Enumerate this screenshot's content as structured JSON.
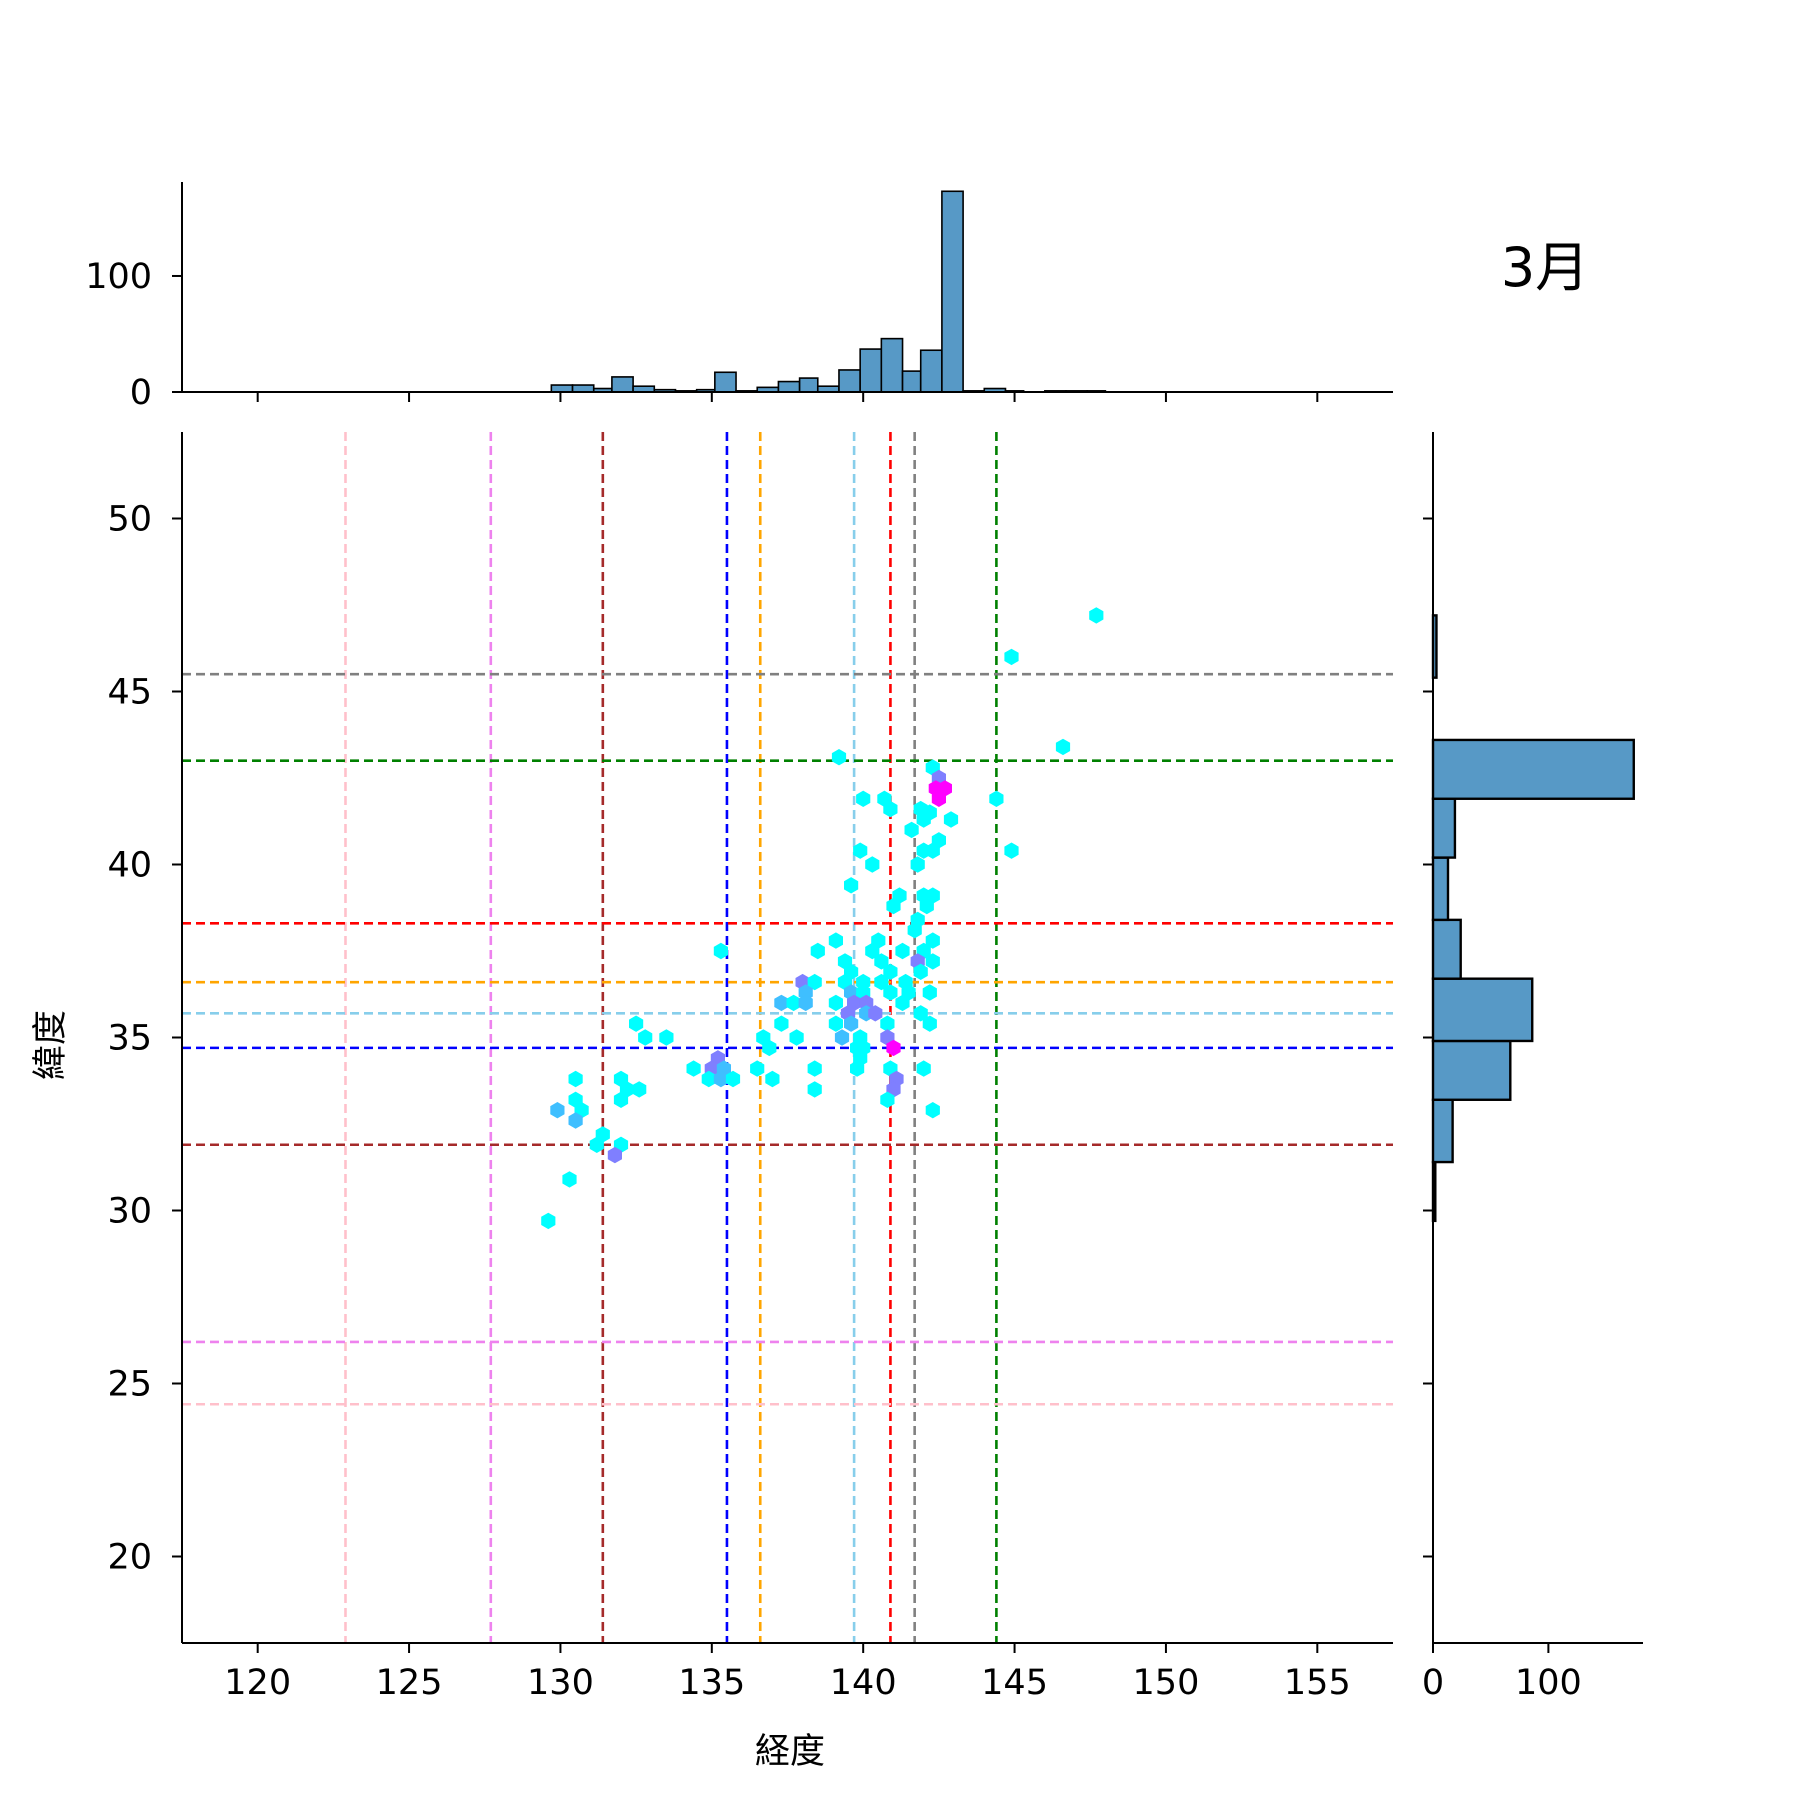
{
  "chart_data": {
    "type": "hexbin-joint",
    "title": "3月",
    "xlabel": "経度",
    "ylabel": "緯度",
    "xlim": [
      117.5,
      157.5
    ],
    "ylim": [
      17.5,
      52.5
    ],
    "xticks": [
      120,
      125,
      130,
      135,
      140,
      145,
      150,
      155
    ],
    "yticks": [
      20,
      25,
      30,
      35,
      40,
      45,
      50
    ],
    "marginal_x": {
      "yticks": [
        0,
        100
      ],
      "bins": [
        {
          "x0": 129.7,
          "x1": 130.4,
          "count": 6
        },
        {
          "x0": 130.4,
          "x1": 131.1,
          "count": 6
        },
        {
          "x0": 131.1,
          "x1": 131.7,
          "count": 3
        },
        {
          "x0": 131.7,
          "x1": 132.4,
          "count": 13
        },
        {
          "x0": 132.4,
          "x1": 133.1,
          "count": 5
        },
        {
          "x0": 133.1,
          "x1": 133.8,
          "count": 2
        },
        {
          "x0": 133.8,
          "x1": 134.5,
          "count": 1
        },
        {
          "x0": 134.5,
          "x1": 135.1,
          "count": 2
        },
        {
          "x0": 135.1,
          "x1": 135.8,
          "count": 17
        },
        {
          "x0": 135.8,
          "x1": 136.5,
          "count": 1
        },
        {
          "x0": 136.5,
          "x1": 137.2,
          "count": 4
        },
        {
          "x0": 137.2,
          "x1": 137.9,
          "count": 9
        },
        {
          "x0": 137.9,
          "x1": 138.5,
          "count": 12
        },
        {
          "x0": 138.5,
          "x1": 139.2,
          "count": 5
        },
        {
          "x0": 139.2,
          "x1": 139.9,
          "count": 19
        },
        {
          "x0": 139.9,
          "x1": 140.6,
          "count": 37
        },
        {
          "x0": 140.6,
          "x1": 141.3,
          "count": 46
        },
        {
          "x0": 141.3,
          "x1": 141.9,
          "count": 18
        },
        {
          "x0": 141.9,
          "x1": 142.6,
          "count": 36
        },
        {
          "x0": 142.6,
          "x1": 143.3,
          "count": 173
        },
        {
          "x0": 143.3,
          "x1": 144.0,
          "count": 1
        },
        {
          "x0": 144.0,
          "x1": 144.7,
          "count": 3
        },
        {
          "x0": 144.7,
          "x1": 145.3,
          "count": 1
        },
        {
          "x0": 146.0,
          "x1": 146.7,
          "count": 1
        },
        {
          "x0": 146.7,
          "x1": 147.4,
          "count": 1
        },
        {
          "x0": 147.4,
          "x1": 148.0,
          "count": 1
        }
      ]
    },
    "marginal_y": {
      "xticks": [
        0,
        100
      ],
      "bins": [
        {
          "y0": 29.7,
          "y1": 31.4,
          "count": 2
        },
        {
          "y0": 31.4,
          "y1": 33.2,
          "count": 17
        },
        {
          "y0": 33.2,
          "y1": 34.9,
          "count": 67
        },
        {
          "y0": 34.9,
          "y1": 36.7,
          "count": 86
        },
        {
          "y0": 36.7,
          "y1": 38.4,
          "count": 24
        },
        {
          "y0": 38.4,
          "y1": 40.2,
          "count": 13
        },
        {
          "y0": 40.2,
          "y1": 41.9,
          "count": 19
        },
        {
          "y0": 41.9,
          "y1": 43.6,
          "count": 174
        },
        {
          "y0": 43.6,
          "y1": 45.4,
          "count": 0
        },
        {
          "y0": 45.4,
          "y1": 47.2,
          "count": 3
        }
      ]
    },
    "vlines": [
      {
        "x": 122.9,
        "color": "#ffc0cb"
      },
      {
        "x": 127.7,
        "color": "#ee82ee"
      },
      {
        "x": 131.4,
        "color": "#a52a2a"
      },
      {
        "x": 135.5,
        "color": "#0000ff"
      },
      {
        "x": 136.6,
        "color": "#ffa500"
      },
      {
        "x": 139.7,
        "color": "#87ceeb"
      },
      {
        "x": 140.9,
        "color": "#ff0000"
      },
      {
        "x": 141.7,
        "color": "#808080"
      },
      {
        "x": 144.4,
        "color": "#008000"
      }
    ],
    "hlines": [
      {
        "y": 45.5,
        "color": "#808080"
      },
      {
        "y": 43.0,
        "color": "#008000"
      },
      {
        "y": 38.3,
        "color": "#ff0000"
      },
      {
        "y": 36.6,
        "color": "#ffa500"
      },
      {
        "y": 35.7,
        "color": "#87ceeb"
      },
      {
        "y": 34.7,
        "color": "#0000ff"
      },
      {
        "y": 31.9,
        "color": "#a52a2a"
      },
      {
        "y": 26.2,
        "color": "#ee82ee"
      },
      {
        "y": 24.4,
        "color": "#ffc0cb"
      }
    ],
    "hexbins": [
      {
        "x": 147.7,
        "y": 47.2,
        "color": "#00ffff"
      },
      {
        "x": 144.9,
        "y": 46.0,
        "color": "#00ffff"
      },
      {
        "x": 146.6,
        "y": 43.4,
        "color": "#00ffff"
      },
      {
        "x": 139.2,
        "y": 43.1,
        "color": "#00ffff"
      },
      {
        "x": 142.3,
        "y": 42.8,
        "color": "#00ffff"
      },
      {
        "x": 142.5,
        "y": 42.5,
        "color": "#7f7fff"
      },
      {
        "x": 142.4,
        "y": 42.2,
        "color": "#ff00ff"
      },
      {
        "x": 142.7,
        "y": 42.2,
        "color": "#ff00ff"
      },
      {
        "x": 142.5,
        "y": 41.9,
        "color": "#ff00ff"
      },
      {
        "x": 140.0,
        "y": 41.9,
        "color": "#00ffff"
      },
      {
        "x": 140.7,
        "y": 41.9,
        "color": "#00ffff"
      },
      {
        "x": 144.4,
        "y": 41.9,
        "color": "#00ffff"
      },
      {
        "x": 140.9,
        "y": 41.6,
        "color": "#00ffff"
      },
      {
        "x": 141.9,
        "y": 41.6,
        "color": "#00ffff"
      },
      {
        "x": 142.2,
        "y": 41.5,
        "color": "#00ffff"
      },
      {
        "x": 142.0,
        "y": 41.3,
        "color": "#00ffff"
      },
      {
        "x": 142.9,
        "y": 41.3,
        "color": "#00ffff"
      },
      {
        "x": 141.6,
        "y": 41.0,
        "color": "#00ffff"
      },
      {
        "x": 142.5,
        "y": 40.7,
        "color": "#00ffff"
      },
      {
        "x": 139.9,
        "y": 40.4,
        "color": "#00ffff"
      },
      {
        "x": 142.0,
        "y": 40.4,
        "color": "#00ffff"
      },
      {
        "x": 142.3,
        "y": 40.4,
        "color": "#00ffff"
      },
      {
        "x": 144.9,
        "y": 40.4,
        "color": "#00ffff"
      },
      {
        "x": 140.3,
        "y": 40.0,
        "color": "#00ffff"
      },
      {
        "x": 141.8,
        "y": 40.0,
        "color": "#00ffff"
      },
      {
        "x": 139.6,
        "y": 39.4,
        "color": "#00ffff"
      },
      {
        "x": 142.0,
        "y": 39.1,
        "color": "#00ffff"
      },
      {
        "x": 142.3,
        "y": 39.1,
        "color": "#00ffff"
      },
      {
        "x": 141.2,
        "y": 39.1,
        "color": "#00ffff"
      },
      {
        "x": 141.0,
        "y": 38.8,
        "color": "#00ffff"
      },
      {
        "x": 142.1,
        "y": 38.8,
        "color": "#00ffff"
      },
      {
        "x": 141.8,
        "y": 38.4,
        "color": "#00ffff"
      },
      {
        "x": 141.7,
        "y": 38.1,
        "color": "#00ffff"
      },
      {
        "x": 139.1,
        "y": 37.8,
        "color": "#00ffff"
      },
      {
        "x": 140.5,
        "y": 37.8,
        "color": "#00ffff"
      },
      {
        "x": 142.3,
        "y": 37.8,
        "color": "#00ffff"
      },
      {
        "x": 135.3,
        "y": 37.5,
        "color": "#00ffff"
      },
      {
        "x": 138.5,
        "y": 37.5,
        "color": "#00ffff"
      },
      {
        "x": 140.3,
        "y": 37.5,
        "color": "#00ffff"
      },
      {
        "x": 141.3,
        "y": 37.5,
        "color": "#00ffff"
      },
      {
        "x": 142.0,
        "y": 37.5,
        "color": "#00ffff"
      },
      {
        "x": 139.4,
        "y": 37.2,
        "color": "#00ffff"
      },
      {
        "x": 140.6,
        "y": 37.2,
        "color": "#00ffff"
      },
      {
        "x": 141.8,
        "y": 37.2,
        "color": "#7f7fff"
      },
      {
        "x": 142.3,
        "y": 37.2,
        "color": "#00ffff"
      },
      {
        "x": 139.6,
        "y": 36.9,
        "color": "#00ffff"
      },
      {
        "x": 140.9,
        "y": 36.9,
        "color": "#00ffff"
      },
      {
        "x": 141.9,
        "y": 36.9,
        "color": "#00ffff"
      },
      {
        "x": 138.0,
        "y": 36.6,
        "color": "#7f7fff"
      },
      {
        "x": 138.4,
        "y": 36.6,
        "color": "#00ffff"
      },
      {
        "x": 139.4,
        "y": 36.6,
        "color": "#00ffff"
      },
      {
        "x": 140.0,
        "y": 36.6,
        "color": "#00ffff"
      },
      {
        "x": 140.6,
        "y": 36.6,
        "color": "#00ffff"
      },
      {
        "x": 141.4,
        "y": 36.6,
        "color": "#00ffff"
      },
      {
        "x": 138.1,
        "y": 36.3,
        "color": "#3fbfff"
      },
      {
        "x": 139.6,
        "y": 36.3,
        "color": "#3fbfff"
      },
      {
        "x": 140.0,
        "y": 36.3,
        "color": "#00ffff"
      },
      {
        "x": 140.9,
        "y": 36.3,
        "color": "#00ffff"
      },
      {
        "x": 141.5,
        "y": 36.3,
        "color": "#00ffff"
      },
      {
        "x": 142.2,
        "y": 36.3,
        "color": "#00ffff"
      },
      {
        "x": 137.3,
        "y": 36.0,
        "color": "#3fbfff"
      },
      {
        "x": 137.7,
        "y": 36.0,
        "color": "#00ffff"
      },
      {
        "x": 138.1,
        "y": 36.0,
        "color": "#3fbfff"
      },
      {
        "x": 139.1,
        "y": 36.0,
        "color": "#00ffff"
      },
      {
        "x": 139.7,
        "y": 36.0,
        "color": "#7f7fff"
      },
      {
        "x": 140.1,
        "y": 36.0,
        "color": "#7f7fff"
      },
      {
        "x": 141.3,
        "y": 36.0,
        "color": "#00ffff"
      },
      {
        "x": 139.5,
        "y": 35.7,
        "color": "#7f7fff"
      },
      {
        "x": 140.1,
        "y": 35.7,
        "color": "#3fbfff"
      },
      {
        "x": 140.4,
        "y": 35.7,
        "color": "#7f7fff"
      },
      {
        "x": 141.9,
        "y": 35.7,
        "color": "#00ffff"
      },
      {
        "x": 137.3,
        "y": 35.4,
        "color": "#00ffff"
      },
      {
        "x": 139.1,
        "y": 35.4,
        "color": "#00ffff"
      },
      {
        "x": 139.6,
        "y": 35.4,
        "color": "#3fbfff"
      },
      {
        "x": 140.8,
        "y": 35.4,
        "color": "#00ffff"
      },
      {
        "x": 142.2,
        "y": 35.4,
        "color": "#00ffff"
      },
      {
        "x": 132.5,
        "y": 35.4,
        "color": "#00ffff"
      },
      {
        "x": 132.8,
        "y": 35.0,
        "color": "#00ffff"
      },
      {
        "x": 133.5,
        "y": 35.0,
        "color": "#00ffff"
      },
      {
        "x": 136.7,
        "y": 35.0,
        "color": "#00ffff"
      },
      {
        "x": 137.8,
        "y": 35.0,
        "color": "#00ffff"
      },
      {
        "x": 139.3,
        "y": 35.0,
        "color": "#3fbfff"
      },
      {
        "x": 139.9,
        "y": 35.0,
        "color": "#00ffff"
      },
      {
        "x": 140.8,
        "y": 35.0,
        "color": "#7f7fff"
      },
      {
        "x": 136.9,
        "y": 34.7,
        "color": "#00ffff"
      },
      {
        "x": 139.8,
        "y": 34.7,
        "color": "#00ffff"
      },
      {
        "x": 140.0,
        "y": 34.7,
        "color": "#00ffff"
      },
      {
        "x": 141.0,
        "y": 34.7,
        "color": "#ff00ff"
      },
      {
        "x": 135.2,
        "y": 34.4,
        "color": "#7f7fff"
      },
      {
        "x": 139.9,
        "y": 34.4,
        "color": "#00ffff"
      },
      {
        "x": 134.4,
        "y": 34.1,
        "color": "#00ffff"
      },
      {
        "x": 135.0,
        "y": 34.1,
        "color": "#7f7fff"
      },
      {
        "x": 135.4,
        "y": 34.1,
        "color": "#3fbfff"
      },
      {
        "x": 136.5,
        "y": 34.1,
        "color": "#00ffff"
      },
      {
        "x": 138.4,
        "y": 34.1,
        "color": "#00ffff"
      },
      {
        "x": 139.8,
        "y": 34.1,
        "color": "#00ffff"
      },
      {
        "x": 140.9,
        "y": 34.1,
        "color": "#00ffff"
      },
      {
        "x": 142.0,
        "y": 34.1,
        "color": "#00ffff"
      },
      {
        "x": 130.5,
        "y": 33.8,
        "color": "#00ffff"
      },
      {
        "x": 132.0,
        "y": 33.8,
        "color": "#00ffff"
      },
      {
        "x": 134.9,
        "y": 33.8,
        "color": "#00ffff"
      },
      {
        "x": 135.3,
        "y": 33.8,
        "color": "#3fbfff"
      },
      {
        "x": 135.7,
        "y": 33.8,
        "color": "#00ffff"
      },
      {
        "x": 137.0,
        "y": 33.8,
        "color": "#00ffff"
      },
      {
        "x": 141.1,
        "y": 33.8,
        "color": "#7f7fff"
      },
      {
        "x": 132.2,
        "y": 33.5,
        "color": "#00ffff"
      },
      {
        "x": 132.6,
        "y": 33.5,
        "color": "#00ffff"
      },
      {
        "x": 138.4,
        "y": 33.5,
        "color": "#00ffff"
      },
      {
        "x": 141.0,
        "y": 33.5,
        "color": "#7f7fff"
      },
      {
        "x": 130.5,
        "y": 33.2,
        "color": "#00ffff"
      },
      {
        "x": 132.0,
        "y": 33.2,
        "color": "#00ffff"
      },
      {
        "x": 140.8,
        "y": 33.2,
        "color": "#00ffff"
      },
      {
        "x": 129.9,
        "y": 32.9,
        "color": "#3fbfff"
      },
      {
        "x": 130.7,
        "y": 32.9,
        "color": "#00ffff"
      },
      {
        "x": 142.3,
        "y": 32.9,
        "color": "#00ffff"
      },
      {
        "x": 130.5,
        "y": 32.6,
        "color": "#3fbfff"
      },
      {
        "x": 131.4,
        "y": 32.2,
        "color": "#00ffff"
      },
      {
        "x": 131.2,
        "y": 31.9,
        "color": "#00ffff"
      },
      {
        "x": 132.0,
        "y": 31.9,
        "color": "#00ffff"
      },
      {
        "x": 131.8,
        "y": 31.6,
        "color": "#7f7fff"
      },
      {
        "x": 130.3,
        "y": 30.9,
        "color": "#00ffff"
      },
      {
        "x": 129.6,
        "y": 29.7,
        "color": "#00ffff"
      }
    ]
  }
}
